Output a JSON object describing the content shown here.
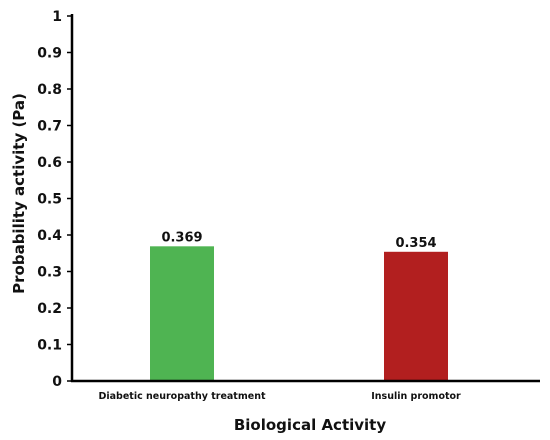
{
  "chart_data": {
    "type": "bar",
    "categories": [
      "Diabetic neuropathy treatment",
      "Insulin promotor"
    ],
    "values": [
      0.369,
      0.354
    ],
    "data_labels": [
      "0.369",
      "0.354"
    ],
    "bar_colors": [
      "#4fb452",
      "#b21f1f"
    ],
    "xlabel": "Biological Activity",
    "ylabel": "Probability activity (Pa)",
    "y_ticks": [
      {
        "value": 0,
        "label": "0"
      },
      {
        "value": 0.1,
        "label": "0.1"
      },
      {
        "value": 0.2,
        "label": "0.2"
      },
      {
        "value": 0.3,
        "label": "0.3"
      },
      {
        "value": 0.4,
        "label": "0.4"
      },
      {
        "value": 0.5,
        "label": "0.5"
      },
      {
        "value": 0.6,
        "label": "0.6"
      },
      {
        "value": 0.7,
        "label": "0.7"
      },
      {
        "value": 0.8,
        "label": "0.8"
      },
      {
        "value": 0.9,
        "label": "0.9"
      },
      {
        "value": 1,
        "label": "1"
      }
    ],
    "ylim": [
      0,
      1
    ],
    "grid": false,
    "legend": "none"
  }
}
